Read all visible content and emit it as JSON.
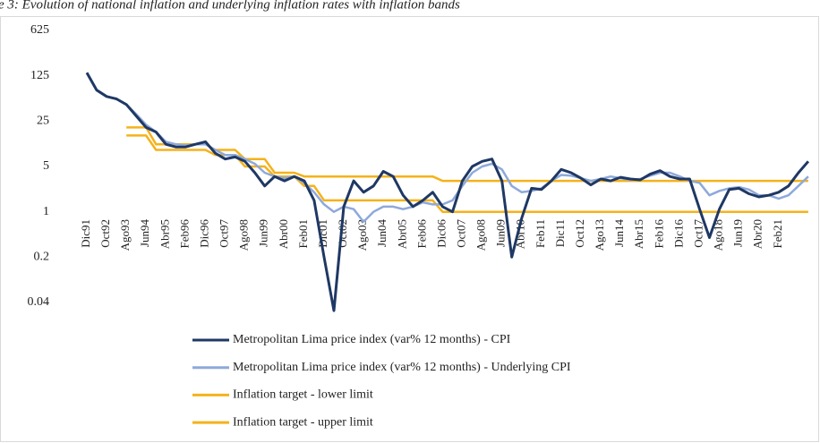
{
  "chart_data": {
    "type": "line",
    "title": "e 3: Evolution of national inflation and underlying inflation rates with inflation bands",
    "log_scale": true,
    "grid": false,
    "legend": "bottom",
    "categories": [
      "Dic91",
      null,
      "Oct92",
      null,
      "Ago93",
      null,
      "Jun94",
      null,
      "Abr95",
      null,
      "Feb96",
      null,
      "Dic96",
      null,
      "Oct97",
      null,
      "Ago98",
      null,
      "Jun99",
      null,
      "Abr00",
      null,
      "Feb01",
      null,
      "Dic01",
      null,
      "Oct02",
      null,
      "Ago03",
      null,
      "Jun04",
      null,
      "Abr05",
      null,
      "Feb06",
      null,
      "Dic06",
      null,
      "Oct07",
      null,
      "Ago08",
      null,
      "Jun09",
      null,
      "Abr10",
      null,
      "Feb11",
      null,
      "Dic11",
      null,
      "Oct12",
      null,
      "Ago13",
      null,
      "Jun14",
      null,
      "Abr15",
      null,
      "Feb16",
      null,
      "Dic16",
      null,
      "Oct17",
      null,
      "Ago18",
      null,
      "Jun19",
      null,
      "Abr20",
      null,
      "Feb21",
      null,
      null,
      null
    ],
    "ylim": [
      0.04,
      625
    ],
    "yticks": [
      0.04,
      0.2,
      1,
      5,
      25,
      125,
      625
    ],
    "series": [
      {
        "name": "Metropolitan Lima price index (var% 12 months) - CPI",
        "color": "#1f3864",
        "values": [
          139,
          75,
          60,
          55,
          45,
          30,
          20,
          17,
          11,
          10,
          10,
          11,
          12,
          8,
          6.5,
          7,
          6,
          4,
          2.5,
          3.5,
          3,
          3.5,
          3,
          1.5,
          0.2,
          0.03,
          1.2,
          3,
          2,
          2.5,
          4.2,
          3.5,
          1.8,
          1.2,
          1.5,
          2,
          1.2,
          1.0,
          3,
          5,
          6,
          6.5,
          3,
          0.2,
          0.8,
          2.3,
          2.2,
          3,
          4.5,
          4,
          3.3,
          2.6,
          3.2,
          3,
          3.4,
          3.2,
          3.1,
          3.8,
          4.3,
          3.5,
          3.2,
          3.2,
          1.1,
          0.4,
          1.1,
          2.2,
          2.3,
          1.9,
          1.7,
          1.8,
          2.0,
          2.5,
          4,
          6
        ]
      },
      {
        "name": "Metropolitan Lima price index (var% 12 months) - Underlying CPI",
        "color": "#8ea9db",
        "values": [
          139,
          75,
          60,
          55,
          45,
          32,
          22,
          17,
          12,
          11,
          10.5,
          11,
          11,
          9,
          7.5,
          7.5,
          6.5,
          5.5,
          4,
          3.5,
          3.3,
          3.5,
          2.8,
          2,
          1.3,
          1.0,
          1.2,
          1.1,
          0.7,
          1.0,
          1.2,
          1.2,
          1.1,
          1.2,
          1.4,
          1.3,
          1.3,
          1.5,
          2.5,
          4,
          5,
          5.5,
          4.5,
          2.5,
          2,
          2.1,
          2.3,
          3,
          3.7,
          3.6,
          3.3,
          3.0,
          3.2,
          3.5,
          3.3,
          3.1,
          3.2,
          3.6,
          4.0,
          4.0,
          3.5,
          3.0,
          2.8,
          1.8,
          2.1,
          2.3,
          2.4,
          2.2,
          1.8,
          1.8,
          1.6,
          1.8,
          2.5,
          3.5
        ]
      },
      {
        "name": "Inflation target - lower limit",
        "color": "#f5b21a",
        "values": [
          null,
          null,
          null,
          null,
          15,
          15,
          15,
          9,
          9,
          9,
          9,
          9,
          9,
          7.5,
          7.5,
          7.5,
          5,
          5,
          5,
          3.5,
          3.5,
          3.5,
          2.5,
          2.5,
          1.5,
          1.5,
          1.5,
          1.5,
          1.5,
          1.5,
          1.5,
          1.5,
          1.5,
          1.5,
          1.5,
          1.5,
          1,
          1,
          1,
          1,
          1,
          1,
          1,
          1,
          1,
          1,
          1,
          1,
          1,
          1,
          1,
          1,
          1,
          1,
          1,
          1,
          1,
          1,
          1,
          1,
          1,
          1,
          1,
          1,
          1,
          1,
          1,
          1,
          1,
          1,
          1,
          1,
          1,
          1
        ]
      },
      {
        "name": "Inflation target - upper limit",
        "color": "#f5b21a",
        "values": [
          null,
          null,
          null,
          null,
          20,
          20,
          20,
          11,
          11,
          11,
          11,
          11,
          11,
          9,
          9,
          9,
          6.5,
          6.5,
          6.5,
          4,
          4,
          4,
          3.5,
          3.5,
          3.5,
          3.5,
          3.5,
          3.5,
          3.5,
          3.5,
          3.5,
          3.5,
          3.5,
          3.5,
          3.5,
          3.5,
          3,
          3,
          3,
          3,
          3,
          3,
          3,
          3,
          3,
          3,
          3,
          3,
          3,
          3,
          3,
          3,
          3,
          3,
          3,
          3,
          3,
          3,
          3,
          3,
          3,
          3,
          3,
          3,
          3,
          3,
          3,
          3,
          3,
          3,
          3,
          3,
          3,
          3
        ]
      }
    ]
  }
}
